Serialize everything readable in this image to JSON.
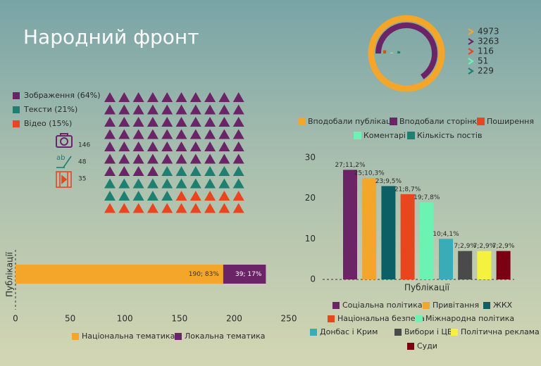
{
  "title": "Народний фронт",
  "chart_data": [
    {
      "type": "radial_bar",
      "categories": [
        "Вподобали публікації",
        "Вподобали сторінку",
        "Поширення",
        "Коментарі",
        "Кількість постів"
      ],
      "values": [
        4973,
        3263,
        116,
        51,
        229
      ],
      "colors": [
        "#f4a62a",
        "#6b2466",
        "#e8461f",
        "#6cf2b2",
        "#1f7f70"
      ]
    },
    {
      "type": "waffle",
      "categories": [
        "Зображення (64%)",
        "Тексти (21%)",
        "Відео (15%)"
      ],
      "values": [
        146,
        48,
        35
      ],
      "percents": [
        64,
        21,
        15
      ],
      "colors": [
        "#6b2466",
        "#1f7f70",
        "#e8461f"
      ]
    },
    {
      "type": "stacked_bar_horizontal",
      "ylabel": "Публікації",
      "series": [
        {
          "name": "Національна тематика",
          "color": "#f4a62a",
          "values": [
            190
          ],
          "value_labels": [
            "190; 83%"
          ]
        },
        {
          "name": "Локальна тематика",
          "color": "#6b2466",
          "values": [
            39
          ],
          "value_labels": [
            "39; 17%"
          ]
        }
      ],
      "xlim": [
        0,
        250
      ],
      "xticks": [
        0,
        50,
        100,
        150,
        200,
        250
      ]
    },
    {
      "type": "bar",
      "xlabel": "Публікації",
      "categories": [
        "Соціальна політика",
        "Привітання",
        "ЖКХ",
        "Національна безпека",
        "Міжнародна політика",
        "Донбас і Крим",
        "Вибори і ЦВК",
        "Політична реклама",
        "Суди"
      ],
      "values": [
        27,
        25,
        23,
        21,
        19,
        10,
        7,
        7,
        7
      ],
      "value_labels": [
        "27;11,2%",
        "25;10,3%",
        "23;9,5%",
        "21;8,7%",
        "19;7,8%",
        "10;4,1%",
        "7;2,9%",
        "7;2,9%",
        "7;2,9%"
      ],
      "colors": [
        "#6b2466",
        "#f4a62a",
        "#0d5f66",
        "#e8461f",
        "#6cf2b2",
        "#3aacb8",
        "#4a4a4a",
        "#f4f23e",
        "#7a0012"
      ],
      "ylim": [
        0,
        30
      ],
      "yticks": [
        0,
        10,
        20,
        30
      ]
    }
  ]
}
